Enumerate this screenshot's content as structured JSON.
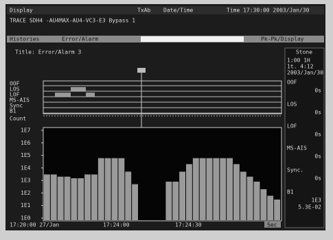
{
  "header": {
    "menu": "Display",
    "tab": "TxAb",
    "datetime_label": "Date/Time",
    "time": "Time 17:30:00 2003/Jan/30",
    "trace": "TRACE SDH4 -AU4MAX-AU4-VC3-E3 Bypass 1"
  },
  "tabs": [
    "Histories",
    "Error/Alarm",
    "Pk-Pk/Display"
  ],
  "title": "Title: Error/Alarm 3",
  "events": [
    "OOF",
    "LOS",
    "LOF",
    "MS-AIS",
    "Sync",
    "B1"
  ],
  "count_label": "Count",
  "graph": {
    "type": "bar",
    "log_scale": true,
    "ylim": [
      1,
      10000000
    ],
    "yticks": [
      {
        "value": 10000000,
        "label": "1E7"
      },
      {
        "value": 1000000,
        "label": "1E6"
      },
      {
        "value": 100000,
        "label": "1E5"
      },
      {
        "value": 10000,
        "label": "1E4"
      },
      {
        "value": 1000,
        "label": "1E3"
      },
      {
        "value": 100,
        "label": "1E2"
      },
      {
        "value": 10,
        "label": "1E1"
      },
      {
        "value": 1,
        "label": "1E0"
      }
    ],
    "values": [
      3000,
      3000,
      2000,
      2000,
      1500,
      1500,
      3000,
      3000,
      60000,
      60000,
      60000,
      60000,
      5000,
      500,
      null,
      null,
      null,
      null,
      800,
      800,
      5000,
      20000,
      60000,
      60000,
      60000,
      60000,
      60000,
      60000,
      20000,
      5000,
      2000,
      800,
      200,
      60,
      30
    ],
    "color": "#9a9a9a",
    "x_labels": [
      "17:20:00 27/Jan",
      "17:24:00",
      "17:24:30"
    ],
    "unit_button": "Sec"
  },
  "side": {
    "title": "Stone",
    "lines": [
      "1:00 1H",
      "1t. 4:12",
      "2003/Jan/30"
    ],
    "items": [
      {
        "name": "OOF",
        "value": "0s"
      },
      {
        "name": "LOS",
        "value": "0s"
      },
      {
        "name": "LOF",
        "value": "0s"
      },
      {
        "name": "MS-AIS",
        "value": "0s"
      },
      {
        "name": "Sync.",
        "value": "0s"
      }
    ],
    "b1": "B1",
    "b1_count": "1E3",
    "b1_rate": "5.3E-02"
  }
}
